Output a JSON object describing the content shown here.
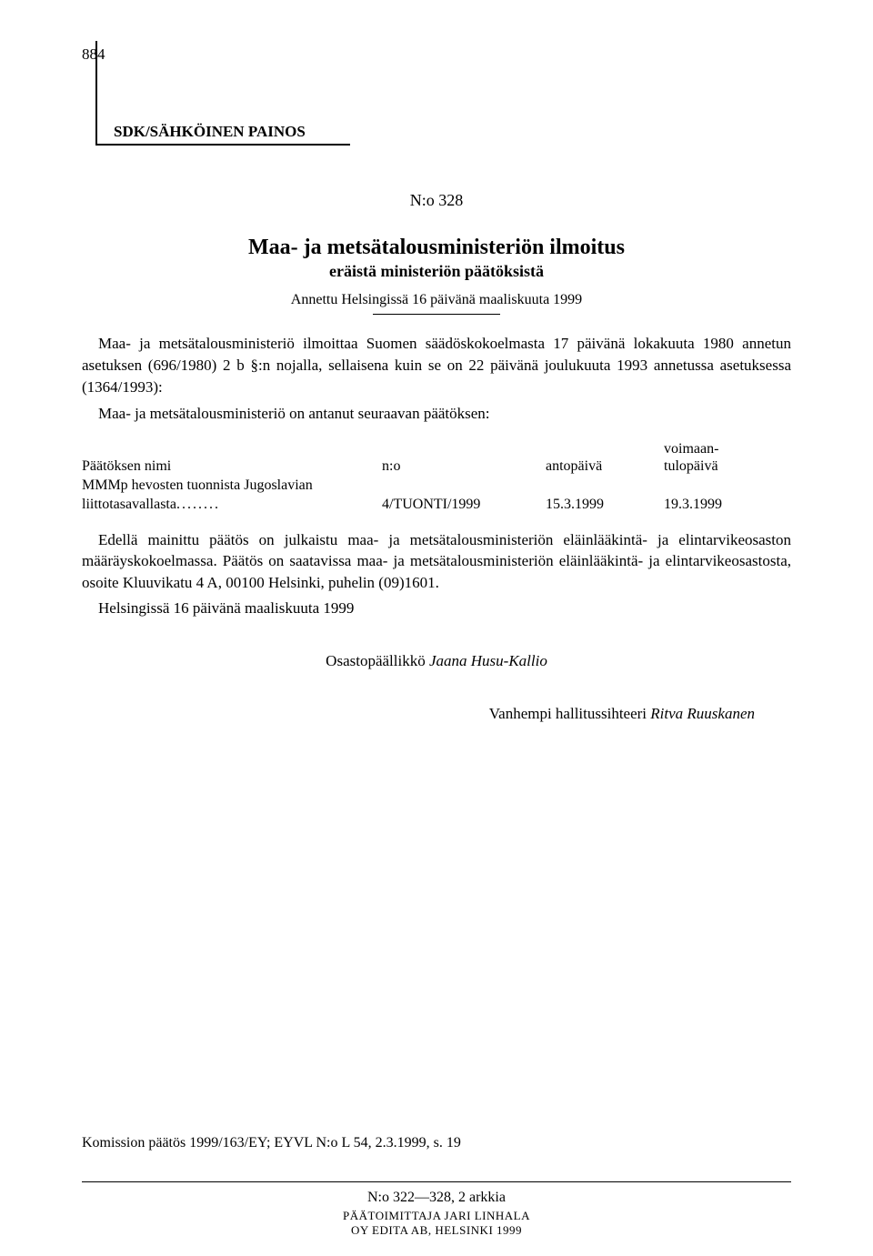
{
  "page_number": "884",
  "sdk_label": "SDK/SÄHKÖINEN PAINOS",
  "announcement_no": "N:o 328",
  "title_line1": "Maa- ja metsätalousministeriön ilmoitus",
  "title_line2": "eräistä ministeriön päätöksistä",
  "issued": "Annettu Helsingissä 16 päivänä maaliskuuta 1999",
  "para1": "Maa- ja metsätalousministeriö ilmoittaa Suomen säädöskokoelmasta 17 päivänä lokakuuta 1980 annetun asetuksen (696/1980) 2 b §:n nojalla, sellaisena kuin se on 22 päivänä joulukuuta 1993 annetussa asetuksessa (1364/1993):",
  "para2": "Maa- ja metsätalousministeriö on antanut seuraavan päätöksen:",
  "table": {
    "voimaan": "voimaan-",
    "headers": {
      "col1": "Päätöksen nimi",
      "col2": "n:o",
      "col3": "antopäivä",
      "col4": "tulopäivä"
    },
    "row1": {
      "name_line1": "MMMp hevosten tuonnista Jugoslavian",
      "name_line2": "liittotasavallasta",
      "no": "4/TUONTI/1999",
      "antopaiva": "15.3.1999",
      "tulopaiva": "19.3.1999"
    }
  },
  "para3": "Edellä mainittu päätös on julkaistu maa- ja metsätalousministeriön eläinlääkintä- ja elintarvikeosaston määräyskokoelmassa. Päätös on saatavissa maa- ja metsätalousministeriön eläinlääkintä- ja elintarvikeosastosta, osoite Kluuvikatu 4 A, 00100 Helsinki, puhelin (09)1601.",
  "helsinki": "Helsingissä 16 päivänä maaliskuuta 1999",
  "sig1_title": "Osastopäällikkö ",
  "sig1_name": "Jaana Husu-Kallio",
  "sig2_title": "Vanhempi hallitussihteeri ",
  "sig2_name": "Ritva Ruuskanen",
  "footnote": "Komission päätös 1999/163/EY; EYVL N:o L 54, 2.3.1999, s. 19",
  "footer": {
    "line1": "N:o 322—328, 2 arkkia",
    "line2": "PÄÄTOIMITTAJA JARI LINHALA",
    "line3": "OY EDITA AB, HELSINKI 1999"
  }
}
